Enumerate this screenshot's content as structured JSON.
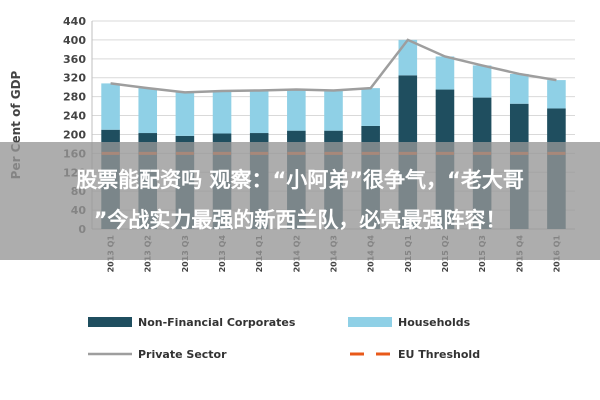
{
  "chart_data": {
    "type": "bar",
    "stacked": true,
    "ylabel": "Per Cent of GDP",
    "ylim": [
      0,
      440
    ],
    "yticks": [
      0,
      40,
      80,
      120,
      160,
      200,
      240,
      280,
      320,
      360,
      400,
      440
    ],
    "grid": true,
    "legend_position": "bottom",
    "categories": [
      "2013 Q1",
      "2013 Q2",
      "2013 Q3",
      "2013 Q4",
      "2014 Q1",
      "2014 Q2",
      "2014 Q3",
      "2014 Q4",
      "2015 Q1",
      "2015 Q2",
      "2015 Q3",
      "2015 Q4",
      "2016 Q1"
    ],
    "series": [
      {
        "name": "Non-Financial Corporates",
        "kind": "bar",
        "color": "#1f4e5f",
        "values": [
          210,
          203,
          197,
          202,
          203,
          208,
          208,
          218,
          325,
          295,
          278,
          265,
          255
        ]
      },
      {
        "name": "Households",
        "kind": "bar",
        "color": "#8fd0e6",
        "values": [
          98,
          95,
          92,
          90,
          90,
          87,
          85,
          80,
          75,
          70,
          68,
          63,
          60
        ]
      },
      {
        "name": "Private Sector",
        "kind": "line",
        "color": "#9e9e9e",
        "values": [
          308,
          298,
          289,
          292,
          293,
          295,
          293,
          298,
          400,
          365,
          346,
          328,
          315
        ]
      },
      {
        "name": "EU Threshold",
        "kind": "dashed",
        "color": "#e8591a",
        "values": [
          160,
          160,
          160,
          160,
          160,
          160,
          160,
          160,
          160,
          160,
          160,
          160,
          160
        ]
      }
    ]
  },
  "overlay": {
    "line1": "股票能配资吗 观察：“小阿弟”很争气，“老大哥",
    "line2": "”今战实力最强的新西兰队，必亮最强阵容！"
  }
}
